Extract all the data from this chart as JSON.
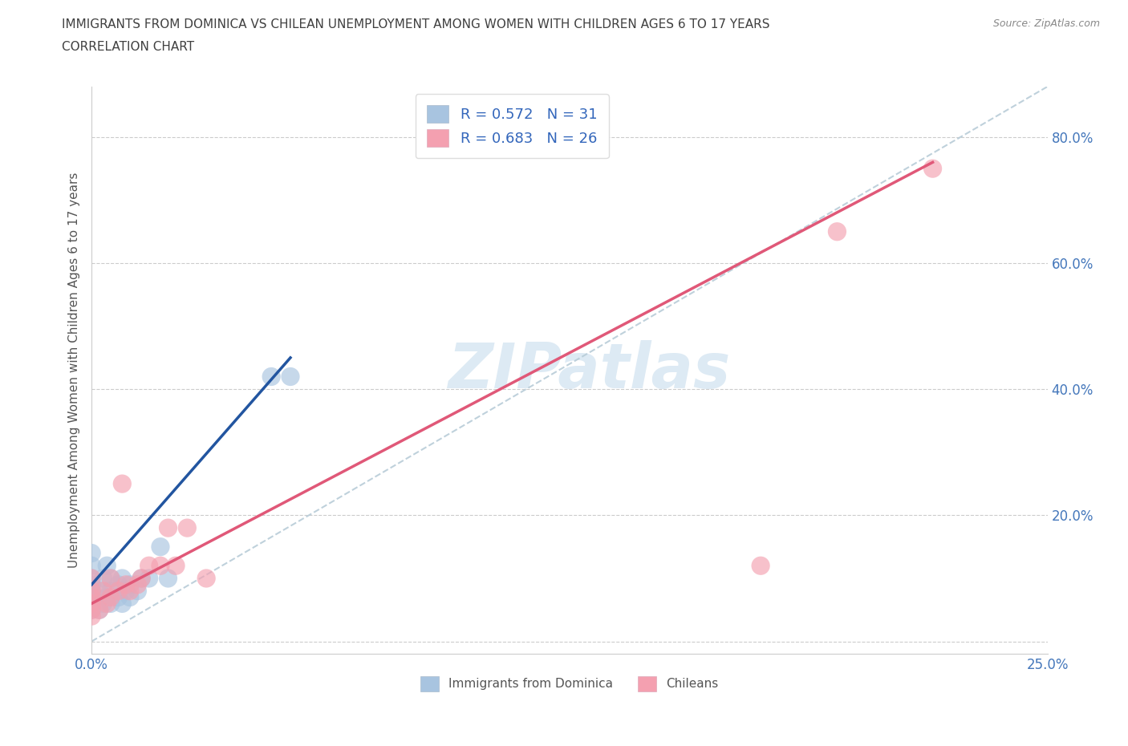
{
  "title1": "IMMIGRANTS FROM DOMINICA VS CHILEAN UNEMPLOYMENT AMONG WOMEN WITH CHILDREN AGES 6 TO 17 YEARS",
  "title2": "CORRELATION CHART",
  "source": "Source: ZipAtlas.com",
  "ylabel": "Unemployment Among Women with Children Ages 6 to 17 years",
  "xlim": [
    0.0,
    0.25
  ],
  "ylim": [
    -0.02,
    0.88
  ],
  "xticks": [
    0.0,
    0.05,
    0.1,
    0.15,
    0.2,
    0.25
  ],
  "xtick_labels": [
    "0.0%",
    "",
    "",
    "",
    "",
    "25.0%"
  ],
  "yticks": [
    0.0,
    0.2,
    0.4,
    0.6,
    0.8
  ],
  "ytick_labels": [
    "",
    "20.0%",
    "40.0%",
    "60.0%",
    "80.0%"
  ],
  "legend1_label": "R = 0.572   N = 31",
  "legend2_label": "R = 0.683   N = 26",
  "legend_bottom1": "Immigrants from Dominica",
  "legend_bottom2": "Chileans",
  "blue_color": "#a8c4e0",
  "pink_color": "#f4a0b0",
  "blue_line_color": "#2255a0",
  "pink_line_color": "#e05878",
  "diag_color": "#b8ccd8",
  "watermark_color": "#ddeaf4",
  "grid_color": "#cccccc",
  "title_color": "#404040",
  "blue_scatter_x": [
    0.0,
    0.0,
    0.0,
    0.0,
    0.0,
    0.0,
    0.0,
    0.0,
    0.002,
    0.002,
    0.003,
    0.003,
    0.004,
    0.004,
    0.005,
    0.005,
    0.005,
    0.007,
    0.007,
    0.008,
    0.008,
    0.009,
    0.01,
    0.01,
    0.012,
    0.013,
    0.015,
    0.018,
    0.02,
    0.047,
    0.052
  ],
  "blue_scatter_y": [
    0.05,
    0.06,
    0.07,
    0.08,
    0.09,
    0.1,
    0.12,
    0.14,
    0.05,
    0.08,
    0.06,
    0.1,
    0.07,
    0.12,
    0.06,
    0.08,
    0.1,
    0.07,
    0.09,
    0.06,
    0.1,
    0.08,
    0.07,
    0.09,
    0.08,
    0.1,
    0.1,
    0.15,
    0.1,
    0.42,
    0.42
  ],
  "pink_scatter_x": [
    0.0,
    0.0,
    0.0,
    0.0,
    0.0,
    0.0,
    0.002,
    0.003,
    0.004,
    0.005,
    0.005,
    0.007,
    0.008,
    0.009,
    0.01,
    0.012,
    0.013,
    0.015,
    0.018,
    0.02,
    0.022,
    0.025,
    0.03,
    0.175,
    0.195,
    0.22
  ],
  "pink_scatter_y": [
    0.04,
    0.05,
    0.06,
    0.07,
    0.08,
    0.1,
    0.05,
    0.08,
    0.06,
    0.07,
    0.1,
    0.08,
    0.25,
    0.09,
    0.08,
    0.09,
    0.1,
    0.12,
    0.12,
    0.18,
    0.12,
    0.18,
    0.1,
    0.12,
    0.65,
    0.75
  ],
  "blue_line_x": [
    0.0,
    0.052
  ],
  "blue_line_y": [
    0.09,
    0.45
  ],
  "pink_line_x": [
    0.0,
    0.22
  ],
  "pink_line_y": [
    0.06,
    0.76
  ],
  "diag_line_x": [
    0.0,
    0.25
  ],
  "diag_line_y": [
    0.0,
    0.88
  ]
}
